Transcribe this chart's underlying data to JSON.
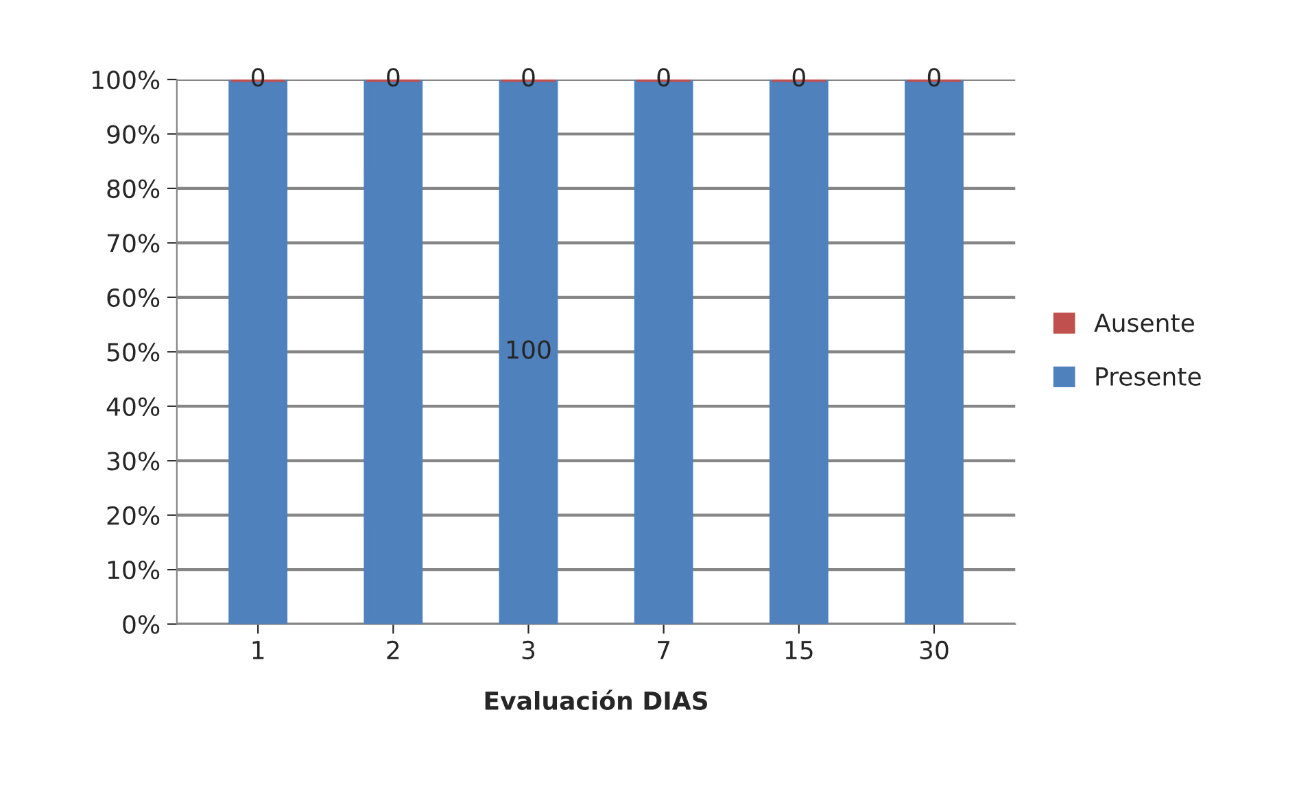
{
  "chart_data": {
    "type": "bar",
    "stacked": true,
    "xlabel": "Evaluación DIAS",
    "categories": [
      "1",
      "2",
      "3",
      "7",
      "15",
      "30"
    ],
    "series": [
      {
        "name": "Presente",
        "color": "#4f81bd",
        "values": [
          100,
          100,
          100,
          100,
          100,
          100
        ],
        "value_labels": [
          null,
          null,
          "100",
          null,
          null,
          null
        ]
      },
      {
        "name": "Ausente",
        "color": "#c0504d",
        "values": [
          0,
          0,
          0,
          0,
          0,
          0
        ],
        "value_labels": [
          "0",
          "0",
          "0",
          "0",
          "0",
          "0"
        ]
      }
    ],
    "ylim": [
      0,
      100
    ],
    "yticks": [
      {
        "value": 0,
        "label": "0%"
      },
      {
        "value": 10,
        "label": "10%"
      },
      {
        "value": 20,
        "label": "20%"
      },
      {
        "value": 30,
        "label": "30%"
      },
      {
        "value": 40,
        "label": "40%"
      },
      {
        "value": 50,
        "label": "50%"
      },
      {
        "value": 60,
        "label": "60%"
      },
      {
        "value": 70,
        "label": "70%"
      },
      {
        "value": 80,
        "label": "80%"
      },
      {
        "value": 90,
        "label": "90%"
      },
      {
        "value": 100,
        "label": "100%"
      }
    ],
    "grid": "y",
    "legend": "right"
  }
}
